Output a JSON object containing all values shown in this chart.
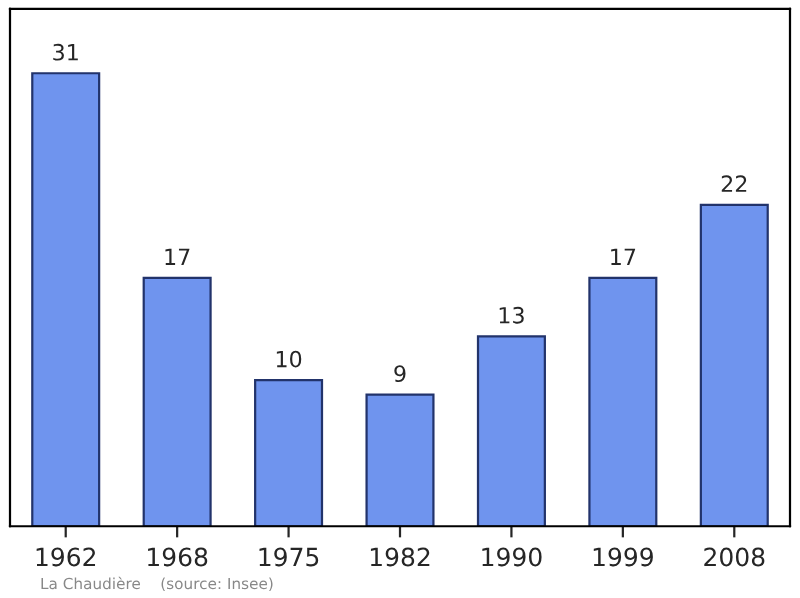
{
  "chart_data": {
    "type": "bar",
    "categories": [
      "1962",
      "1968",
      "1975",
      "1982",
      "1990",
      "1999",
      "2008"
    ],
    "values": [
      31,
      17,
      10,
      9,
      13,
      17,
      22
    ],
    "color": "#6f94ee",
    "data_labels": true,
    "ylim": [
      0,
      35.4
    ],
    "tick_labels": "x",
    "grid": false,
    "legend": false,
    "annotations": [
      "La Chaudière    (source: Insee)"
    ]
  }
}
